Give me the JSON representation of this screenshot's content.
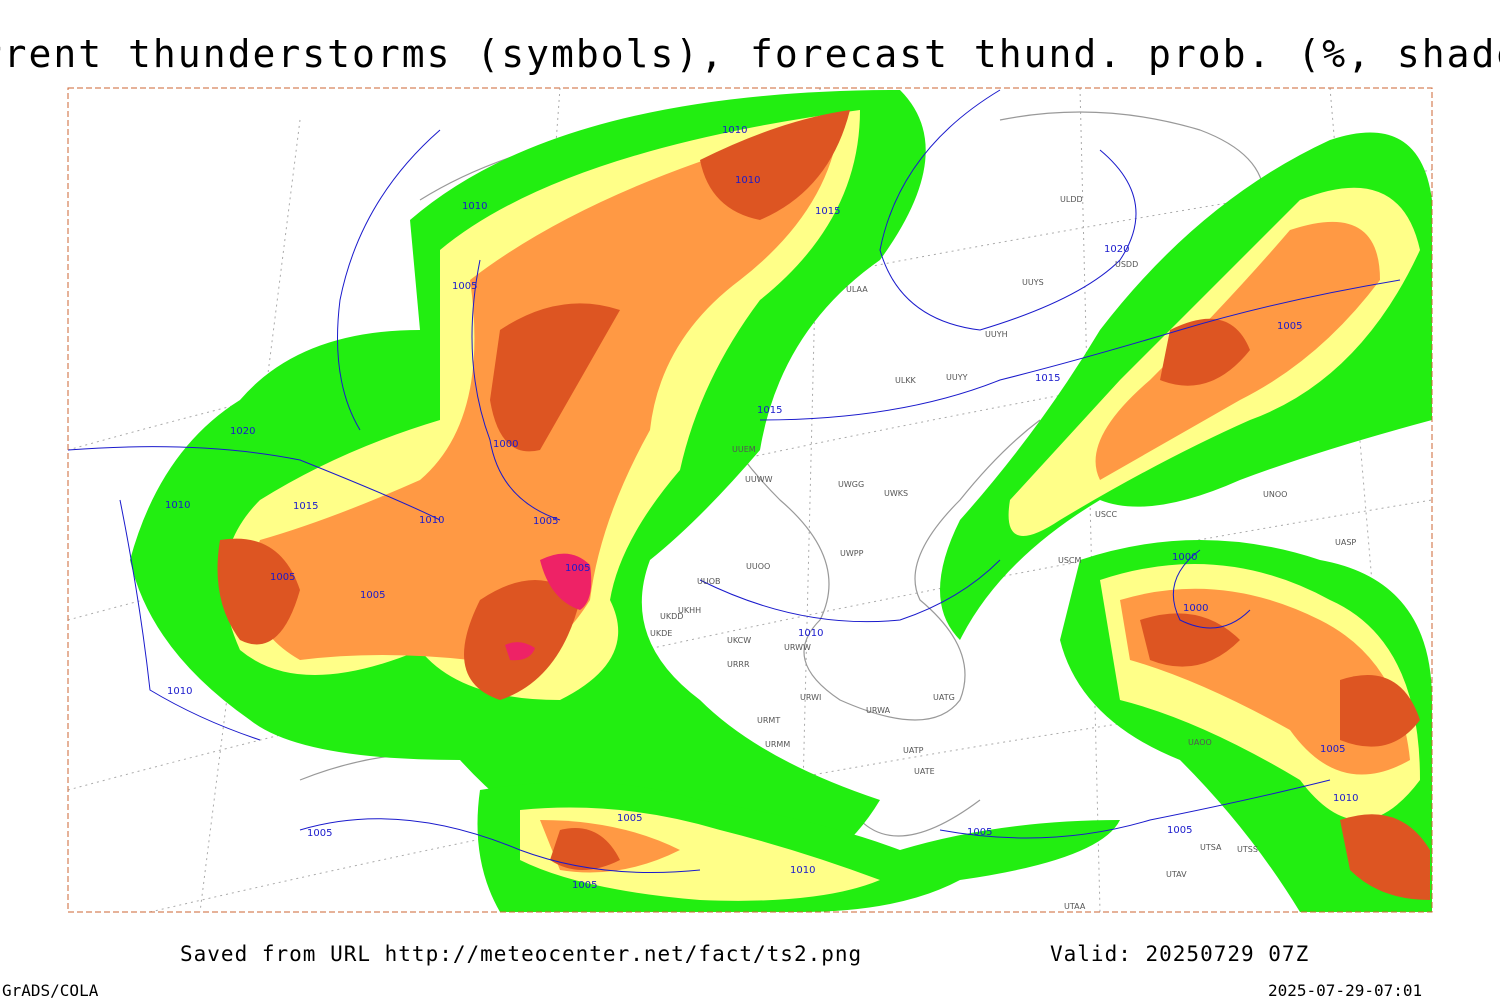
{
  "header": {
    "title": "Current thunderstorms (symbols), forecast thund. prob. (%, shaded)"
  },
  "map": {
    "isobar_labels": [
      "1010",
      "1010",
      "1010",
      "1015",
      "1005",
      "1020",
      "1000",
      "1005",
      "1005",
      "1010",
      "1015",
      "1010",
      "1005",
      "1005",
      "1010",
      "1015",
      "1015",
      "1005",
      "1000",
      "1000",
      "1005",
      "1010",
      "1005",
      "1005",
      "1005",
      "1010",
      "1005",
      "1005",
      "1010",
      "1020"
    ],
    "station_labels": [
      "ULDD",
      "UUYS",
      "USDD",
      "ULAA",
      "UUYH",
      "ULKK",
      "UUYY",
      "UUEM",
      "UUWW",
      "UWGG",
      "UWKS",
      "UWPP",
      "UUOO",
      "UUOB",
      "UKHH",
      "UKDD",
      "UKDE",
      "UKCW",
      "URWW",
      "URRR",
      "URWI",
      "UATG",
      "URWA",
      "URMT",
      "URMM",
      "UATE",
      "UATP",
      "UNOO",
      "UASP",
      "UAOO",
      "UTSA",
      "UTSS",
      "UTAV",
      "UTAA",
      "USCM",
      "USCC"
    ]
  },
  "footer": {
    "source": "Saved from URL http://meteocenter.net/fact/ts2.png",
    "valid": "Valid: 20250729 07Z",
    "software": "GrADS/COLA",
    "timestamp": "2025-07-29-07:01"
  }
}
